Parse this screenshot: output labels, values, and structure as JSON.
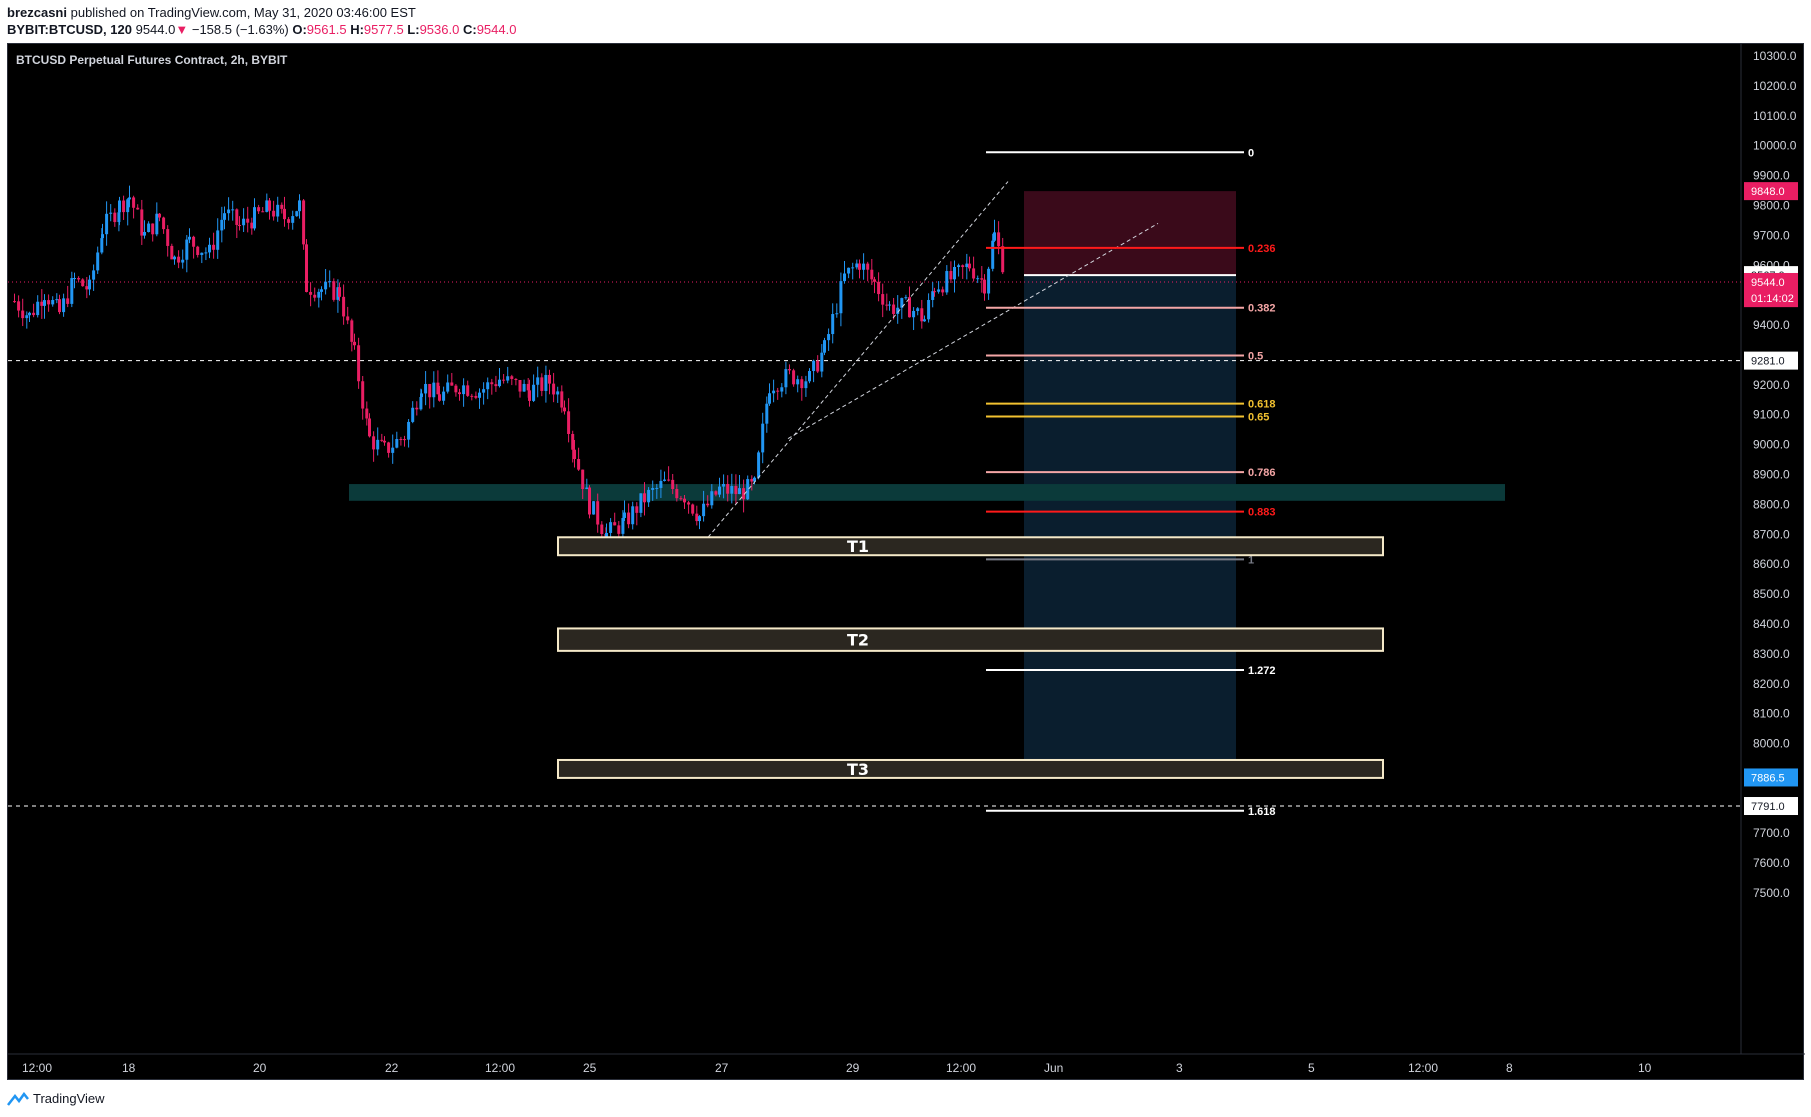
{
  "header": {
    "author": "brezcasni",
    "published_text": "published on TradingView.com, May 31, 2020 03:46:00 EST",
    "symbol": "BYBIT:BTCUSD, 120",
    "last_price": "9544.0",
    "change": "−158.5 (−1.63%)",
    "o_label": "O:",
    "o_value": "9561.5",
    "h_label": "H:",
    "h_value": "9577.5",
    "l_label": "L:",
    "l_value": "9536.0",
    "c_label": "C:",
    "c_value": "9544.0"
  },
  "chart": {
    "title": "BTCUSD Perpetual Futures Contract, 2h, BYBIT",
    "price_axis": {
      "min": 7450,
      "max": 10350,
      "ticks": [
        "10300.0",
        "10200.0",
        "10100.0",
        "10000.0",
        "9900.0",
        "9800.0",
        "9700.0",
        "9600.0",
        "9400.0",
        "9200.0",
        "9100.0",
        "9000.0",
        "8900.0",
        "8800.0",
        "8700.0",
        "8600.0",
        "8500.0",
        "8400.0",
        "8300.0",
        "8200.0",
        "8100.0",
        "8000.0",
        "7700.0",
        "7600.0",
        "7500.0"
      ],
      "tick_values": [
        10300,
        10200,
        10100,
        10000,
        9900,
        9800,
        9700,
        9600,
        9400,
        9200,
        9100,
        9000,
        8900,
        8800,
        8700,
        8600,
        8500,
        8400,
        8300,
        8200,
        8100,
        8000,
        7700,
        7600,
        7500
      ],
      "tags": [
        {
          "text": "9848.0",
          "value": 9848,
          "bg": "#e91e63",
          "fg": "#ffffff"
        },
        {
          "text": "9567.0",
          "value": 9567,
          "bg": "#ffffff",
          "fg": "#131722"
        },
        {
          "text": "9544.0",
          "value": 9544,
          "bg": "#e91e63",
          "fg": "#ffffff"
        },
        {
          "text": "01:14:02",
          "value": 9490,
          "bg": "#e91e63",
          "fg": "#ffffff"
        },
        {
          "text": "9281.0",
          "value": 9281,
          "bg": "#ffffff",
          "fg": "#131722"
        },
        {
          "text": "7886.5",
          "value": 7886.5,
          "bg": "#2196f3",
          "fg": "#ffffff"
        },
        {
          "text": "7791.0",
          "value": 7791,
          "bg": "#ffffff",
          "fg": "#131722"
        }
      ]
    },
    "time_axis": {
      "labels": [
        "12:00",
        "18",
        "20",
        "22",
        "12:00",
        "25",
        "27",
        "29",
        "12:00",
        "Jun",
        "3",
        "5",
        "12:00",
        "8",
        "10"
      ],
      "positions": [
        24,
        124,
        255,
        387,
        487,
        585,
        717,
        848,
        948,
        1046,
        1178,
        1310,
        1410,
        1508,
        1640
      ]
    },
    "fib_levels": [
      {
        "label": "0",
        "value": 9978,
        "color": "#ffffff"
      },
      {
        "label": "0.236",
        "value": 9658,
        "color": "#ff1a1a"
      },
      {
        "label": "0.382",
        "value": 9458,
        "color": "#f4a6a6"
      },
      {
        "label": "0.5",
        "value": 9298,
        "color": "#f4a6a6"
      },
      {
        "label": "0.618",
        "value": 9137,
        "color": "#f2c230"
      },
      {
        "label": "0.65",
        "value": 9094,
        "color": "#f2c230"
      },
      {
        "label": "0.786",
        "value": 8908,
        "color": "#f4a6a6"
      },
      {
        "label": "0.883",
        "value": 8776,
        "color": "#ff1a1a"
      },
      {
        "label": "1",
        "value": 8616,
        "color": "#787b86"
      },
      {
        "label": "1.272",
        "value": 8246,
        "color": "#ffffff"
      },
      {
        "label": "1.618",
        "value": 7775,
        "color": "#ffffff"
      }
    ],
    "targets": [
      {
        "label": "T1",
        "top": 8690,
        "bottom": 8630
      },
      {
        "label": "T2",
        "top": 8385,
        "bottom": 8310
      },
      {
        "label": "T3",
        "top": 7945,
        "bottom": 7885
      }
    ],
    "support_zone": {
      "top": 8868,
      "bottom": 8812
    },
    "horizontal_lines": [
      9567,
      9281,
      7791
    ],
    "position": {
      "entry": 9567,
      "stop": 9848,
      "target": 7886.5
    },
    "colors": {
      "up": "#2196f3",
      "down": "#e91e63",
      "zone": "#0b3a3a",
      "stop_zone": "#3a0a1a",
      "target_zone": "#0a1e2e",
      "price_line": "#e91e63"
    }
  },
  "footer": {
    "brand": "TradingView"
  }
}
